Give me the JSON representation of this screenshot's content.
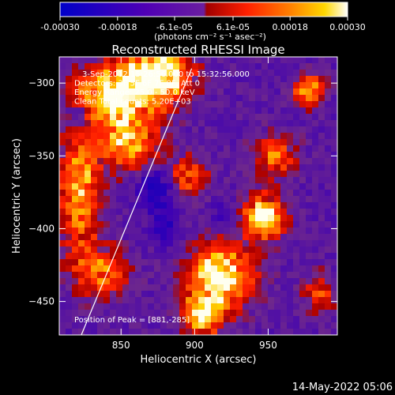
{
  "chart_data": {
    "type": "heatmap",
    "title": "Reconstructed RHESSI Image",
    "xlabel": "Heliocentric X (arcsec)",
    "ylabel": "Heliocentric Y (arcsec)",
    "xlim": [
      808,
      997
    ],
    "ylim": [
      -473,
      -282
    ],
    "x_ticks": [
      850,
      900,
      950
    ],
    "y_ticks": [
      -300,
      -350,
      -400,
      -450
    ],
    "x_tick_labels": [
      "850",
      "900",
      "950"
    ],
    "y_tick_labels": [
      "-300",
      "-350",
      "-400",
      "-450"
    ],
    "colorbar": {
      "range": [
        -0.0003,
        0.0003
      ],
      "ticks": [
        -0.0003,
        -0.00018,
        -6.1e-05,
        6.1e-05,
        0.00018,
        0.0003
      ],
      "tick_labels": [
        "-0.00030",
        "-0.00018",
        "-6.1e-05",
        "6.1e-05",
        "0.00018",
        "0.00030"
      ],
      "units_line": "(photons cm⁻² s⁻¹ asec⁻²)",
      "colors": [
        "#0000c8",
        "#5000b4",
        "#6a1ea0",
        "#ff0000",
        "#ff6a00",
        "#ffc800",
        "#ffffff"
      ]
    },
    "annotations": [
      "3-Sep-2012 15:26:56.000 to 15:32:56.000",
      "Detectors: 3F 5F 6F 7F 8F, Att 0",
      "Energy Range: 25.0 - 50.0 keV",
      "Clean    Total counts: 5.20E+03"
    ],
    "peak_label": "Position of Peak = [881,-285]",
    "limb_line": [
      [
        823,
        -473
      ],
      [
        898,
        -290
      ]
    ],
    "hot_spots": [
      {
        "x": 876,
        "y": -294,
        "sx": 22,
        "sy": 22,
        "amp": 1.0
      },
      {
        "x": 845,
        "y": -308,
        "sx": 24,
        "sy": 20,
        "amp": 0.95
      },
      {
        "x": 855,
        "y": -342,
        "sx": 20,
        "sy": 18,
        "amp": 0.75
      },
      {
        "x": 822,
        "y": -372,
        "sx": 14,
        "sy": 45,
        "amp": 0.75
      },
      {
        "x": 895,
        "y": -365,
        "sx": 14,
        "sy": 14,
        "amp": 0.6
      },
      {
        "x": 978,
        "y": -305,
        "sx": 10,
        "sy": 10,
        "amp": 0.85
      },
      {
        "x": 955,
        "y": -350,
        "sx": 14,
        "sy": 14,
        "amp": 0.6
      },
      {
        "x": 947,
        "y": -392,
        "sx": 14,
        "sy": 15,
        "amp": 1.0
      },
      {
        "x": 918,
        "y": -432,
        "sx": 22,
        "sy": 22,
        "amp": 1.0
      },
      {
        "x": 905,
        "y": -460,
        "sx": 14,
        "sy": 14,
        "amp": 0.85
      },
      {
        "x": 838,
        "y": -430,
        "sx": 18,
        "sy": 18,
        "amp": 0.55
      },
      {
        "x": 985,
        "y": -445,
        "sx": 12,
        "sy": 14,
        "amp": 0.45
      }
    ],
    "cold_spots": [
      {
        "x": 822,
        "y": -322,
        "sx": 8,
        "sy": 10,
        "amp": 0.8
      },
      {
        "x": 875,
        "y": -372,
        "sx": 14,
        "sy": 14,
        "amp": 0.9
      },
      {
        "x": 880,
        "y": -398,
        "sx": 10,
        "sy": 14,
        "amp": 0.7
      },
      {
        "x": 920,
        "y": -392,
        "sx": 10,
        "sy": 10,
        "amp": 0.5
      }
    ]
  },
  "footer": {
    "timestamp": "14-May-2022 05:06"
  }
}
